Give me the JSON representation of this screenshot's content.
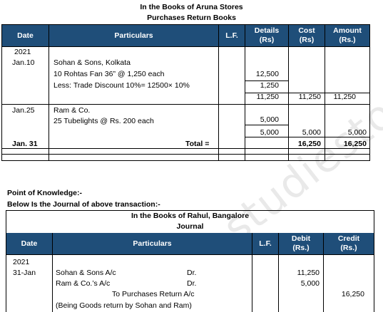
{
  "books1": {
    "title": "In the Books of Aruna Stores",
    "subtitle": "Purchases Return Books",
    "headers": {
      "date": "Date",
      "particulars": "Particulars",
      "lf": "L.F.",
      "details": "Details",
      "details_unit": "(Rs)",
      "cost": "Cost",
      "cost_unit": "(Rs)",
      "amount": "Amount",
      "amount_unit": "(Rs.)"
    },
    "year": "2021",
    "entry1": {
      "date": "Jan.10",
      "line1": "Sohan & Sons, Kolkata",
      "line2": "10 Rohtas Fan 36” @ 1,250 each",
      "line3": "Less: Trade Discount  10%= 12500× 10%",
      "details1": "12,500",
      "details2": "1,250",
      "details3": "11,250",
      "cost": "11,250",
      "amount": "11,250"
    },
    "entry2": {
      "date": "Jan.25",
      "line1": "Ram & Co.",
      "line2": "25 Tubelights @ Rs. 200 each",
      "details1": "5,000",
      "details2": "5,000",
      "cost": "5,000",
      "amount": "5,000"
    },
    "total": {
      "date": "Jan. 31",
      "label": "Total =",
      "cost": "16,250",
      "amount": "16,250"
    }
  },
  "knowledge": {
    "heading": "Point of Knowledge:-",
    "subheading": "Below Is the Journal of above transaction:-"
  },
  "books2": {
    "title": "In the Books of Rahul, Bangalore",
    "subtitle": "Journal",
    "headers": {
      "date": "Date",
      "particulars": "Particulars",
      "lf": "L.F.",
      "debit": "Debit",
      "debit_unit": "(Rs.)",
      "credit": "Credit",
      "credit_unit": "(Rs.)"
    },
    "year": "2021",
    "date": "31-Jan",
    "line1": "Sohan & Sons A/c",
    "line1_dr": "Dr.",
    "line2": "Ram & Co.’s A/c",
    "line2_dr": "Dr.",
    "line3": "To Purchases Return A/c",
    "line4": "(Being Goods return by Sohan and Ram)",
    "debit1": "11,250",
    "debit2": "5,000",
    "credit": "16,250"
  },
  "watermark": "studiestoday.",
  "colors": {
    "header_bg": "#1f4e79",
    "header_text": "#ffffff"
  }
}
